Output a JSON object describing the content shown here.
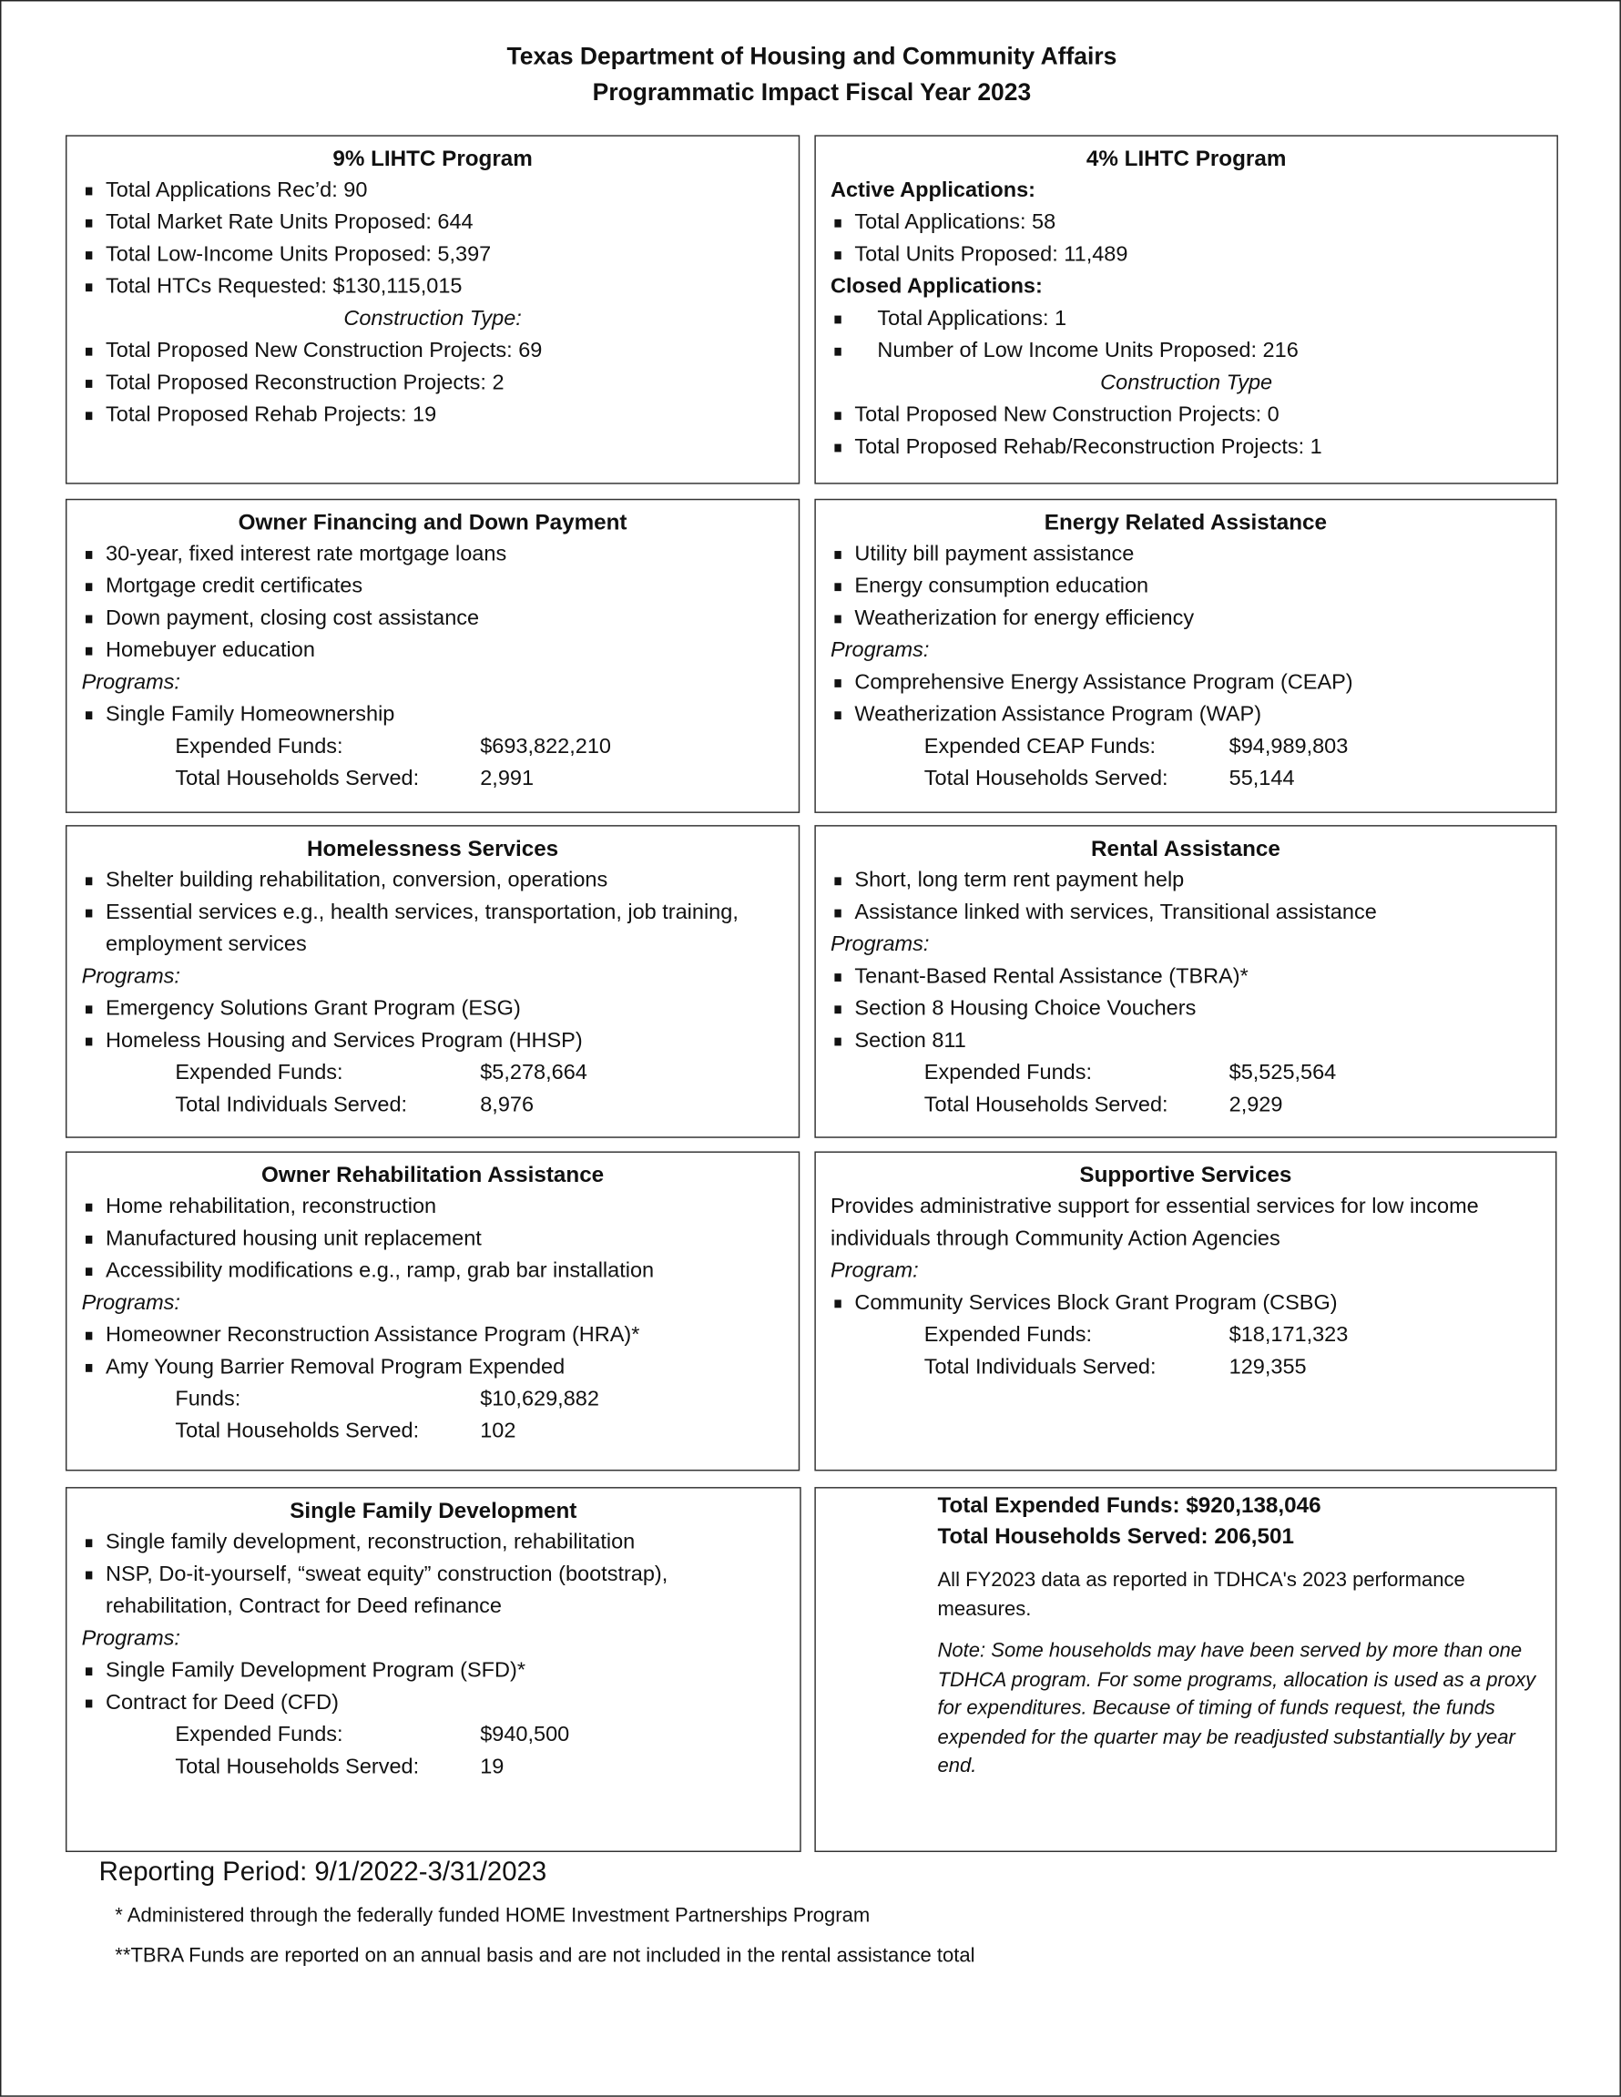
{
  "header": {
    "line1": "Texas Department of Housing and Community Affairs",
    "line2": "Programmatic Impact Fiscal Year 2023"
  },
  "sections": [
    {
      "title": "9% LIHTC Program",
      "lines": [
        {
          "t": "b",
          "text": "Total Applications Rec’d: 90"
        },
        {
          "t": "b",
          "text": "Total Market Rate Units Proposed: 644"
        },
        {
          "t": "b",
          "text": "Total Low-Income Units Proposed: 5,397"
        },
        {
          "t": "b",
          "text": "Total HTCs Requested: $130,115,015"
        },
        {
          "t": "ic",
          "text": "Construction Type:"
        },
        {
          "t": "b",
          "text": "Total Proposed New Construction Projects: 69"
        },
        {
          "t": "b",
          "text": "Total Proposed Reconstruction Projects: 2"
        },
        {
          "t": "b",
          "text": "Total Proposed Rehab Projects: 19"
        }
      ]
    },
    {
      "title": "4% LIHTC Program",
      "lines": [
        {
          "t": "h",
          "text": "Active Applications:"
        },
        {
          "t": "b",
          "text": "Total Applications: 58"
        },
        {
          "t": "b",
          "text": "Total Units Proposed: 11,489"
        },
        {
          "t": "h",
          "text": "Closed Applications:"
        },
        {
          "t": "bi",
          "text": "Total Applications: 1"
        },
        {
          "t": "bi",
          "text": "Number of Low Income Units Proposed: 216"
        },
        {
          "t": "ic",
          "text": "Construction Type"
        },
        {
          "t": "b",
          "text": "Total Proposed New Construction Projects: 0"
        },
        {
          "t": "b",
          "text": "Total Proposed Rehab/Reconstruction Projects: 1"
        }
      ]
    },
    {
      "title": "Owner Financing and Down Payment",
      "lines": [
        {
          "t": "b",
          "text": "30-year, fixed interest rate mortgage loans"
        },
        {
          "t": "b",
          "text": "Mortgage credit certificates"
        },
        {
          "t": "b",
          "text": "Down payment, closing cost assistance"
        },
        {
          "t": "b",
          "text": "Homebuyer education"
        },
        {
          "t": "i",
          "text": "Programs:"
        },
        {
          "t": "b",
          "text": "Single Family Homeownership"
        },
        {
          "t": "kv",
          "text": "Expended Funds:",
          "value": "$693,822,210"
        },
        {
          "t": "kv",
          "text": "Total Households Served:",
          "value": "2,991"
        }
      ]
    },
    {
      "title": "Energy Related Assistance",
      "lines": [
        {
          "t": "b",
          "text": "Utility bill payment assistance"
        },
        {
          "t": "b",
          "text": "Energy consumption education"
        },
        {
          "t": "b",
          "text": "Weatherization for energy efficiency"
        },
        {
          "t": "i",
          "text": "Programs:"
        },
        {
          "t": "b",
          "text": "Comprehensive Energy Assistance Program (CEAP)"
        },
        {
          "t": "b",
          "text": "Weatherization Assistance Program (WAP)"
        },
        {
          "t": "kv",
          "text": "Expended CEAP Funds:",
          "value": "$94,989,803"
        },
        {
          "t": "kv",
          "text": "Total Households Served:",
          "value": "55,144"
        }
      ]
    },
    {
      "title": "Homelessness Services",
      "lines": [
        {
          "t": "b",
          "text": "Shelter building rehabilitation, conversion, operations"
        },
        {
          "t": "b wrap",
          "text": "Essential services e.g., health services, transportation, job training, employment services"
        },
        {
          "t": "i",
          "text": "Programs:"
        },
        {
          "t": "b",
          "text": "Emergency Solutions Grant Program (ESG)"
        },
        {
          "t": "b",
          "text": "Homeless Housing and Services Program (HHSP)"
        },
        {
          "t": "kv",
          "text": "Expended Funds:",
          "value": "$5,278,664"
        },
        {
          "t": "kv",
          "text": "Total Individuals Served:",
          "value": "8,976"
        }
      ]
    },
    {
      "title": "Rental Assistance",
      "lines": [
        {
          "t": "b",
          "text": "Short, long term rent payment help"
        },
        {
          "t": "b",
          "text": "Assistance linked with services, Transitional assistance"
        },
        {
          "t": "i",
          "text": "Programs:"
        },
        {
          "t": "b",
          "text": "Tenant-Based Rental Assistance (TBRA)*"
        },
        {
          "t": "b",
          "text": "Section 8 Housing Choice Vouchers"
        },
        {
          "t": "b",
          "text": "Section 811"
        },
        {
          "t": "kv",
          "text": "Expended Funds:",
          "value": "$5,525,564"
        },
        {
          "t": "kv",
          "text": "Total Households Served:",
          "value": "2,929"
        }
      ]
    },
    {
      "title": "Owner Rehabilitation Assistance",
      "lines": [
        {
          "t": "b",
          "text": "Home rehabilitation, reconstruction"
        },
        {
          "t": "b",
          "text": "Manufactured housing unit replacement"
        },
        {
          "t": "b",
          "text": "Accessibility modifications e.g., ramp, grab bar installation"
        },
        {
          "t": "i",
          "text": "Programs:"
        },
        {
          "t": "b",
          "text": "Homeowner Reconstruction Assistance Program  (HRA)*"
        },
        {
          "t": "b",
          "text": "Amy Young Barrier Removal Program Expended"
        },
        {
          "t": "kv",
          "text": "Funds:",
          "value": "$10,629,882"
        },
        {
          "t": "kv",
          "text": "Total Households Served:",
          "value": "102"
        }
      ]
    },
    {
      "title": "Supportive Services",
      "lines": [
        {
          "t": "p",
          "text": "Provides administrative support for essential services for low income individuals through Community Action Agencies"
        },
        {
          "t": "i",
          "text": "Program:"
        },
        {
          "t": "b",
          "text": "Community Services Block Grant Program (CSBG)"
        },
        {
          "t": "kv",
          "text": "Expended Funds:",
          "value": "$18,171,323"
        },
        {
          "t": "kv",
          "text": "Total Individuals Served:",
          "value": "129,355"
        }
      ]
    },
    {
      "title": "Single Family Development",
      "lines": [
        {
          "t": "b",
          "text": "Single family development, reconstruction, rehabilitation"
        },
        {
          "t": "b wrap",
          "text": "NSP, Do-it-yourself, “sweat equity” construction (bootstrap), rehabilitation, Contract for Deed refinance"
        },
        {
          "t": "i",
          "text": "Programs:"
        },
        {
          "t": "b",
          "text": "Single Family Development Program (SFD)*"
        },
        {
          "t": "b",
          "text": "Contract for Deed (CFD)"
        },
        {
          "t": "kv",
          "text": "Expended Funds:",
          "value": "$940,500"
        },
        {
          "t": "kv",
          "text": "Total Households Served:",
          "value": "19"
        }
      ]
    },
    {
      "title": "",
      "lines": [
        {
          "t": "bold pad",
          "text": "Total Expended Funds: $920,138,046"
        },
        {
          "t": "bold pad",
          "text": "Total Households Served: 206,501"
        },
        {
          "t": "sp",
          "text": ""
        },
        {
          "t": "p pad small",
          "text": "All FY2023 data as reported in TDHCA's 2023 performance measures."
        },
        {
          "t": "sp",
          "text": ""
        },
        {
          "t": "p pad small i",
          "text": "Note: Some households may have been served by more than one TDHCA program. For some programs, allocation is used as a proxy for expenditures. Because of timing of funds request, the funds expended for the quarter may be readjusted substantially by year end."
        }
      ]
    }
  ],
  "footer": {
    "period": "Reporting Period: 9/1/2022-3/31/2023",
    "note1": "* Administered through the federally funded HOME Investment Partnerships Program",
    "note2": "**TBRA Funds are reported on an annual basis and are not included in the rental assistance total"
  }
}
